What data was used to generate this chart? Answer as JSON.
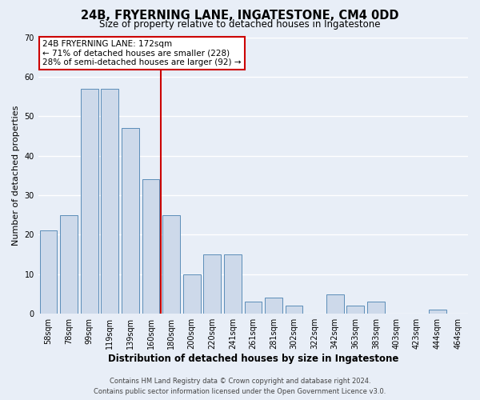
{
  "title": "24B, FRYERNING LANE, INGATESTONE, CM4 0DD",
  "subtitle": "Size of property relative to detached houses in Ingatestone",
  "xlabel": "Distribution of detached houses by size in Ingatestone",
  "ylabel": "Number of detached properties",
  "bar_labels": [
    "58sqm",
    "78sqm",
    "99sqm",
    "119sqm",
    "139sqm",
    "160sqm",
    "180sqm",
    "200sqm",
    "220sqm",
    "241sqm",
    "261sqm",
    "281sqm",
    "302sqm",
    "322sqm",
    "342sqm",
    "363sqm",
    "383sqm",
    "403sqm",
    "423sqm",
    "444sqm",
    "464sqm"
  ],
  "bar_values": [
    21,
    25,
    57,
    57,
    47,
    34,
    25,
    10,
    15,
    15,
    3,
    4,
    2,
    0,
    5,
    2,
    3,
    0,
    0,
    1,
    0
  ],
  "bar_color": "#cdd9ea",
  "bar_edge_color": "#5b8db8",
  "ylim": [
    0,
    70
  ],
  "yticks": [
    0,
    10,
    20,
    30,
    40,
    50,
    60,
    70
  ],
  "vline_color": "#cc0000",
  "annotation_title": "24B FRYERNING LANE: 172sqm",
  "annotation_line1": "← 71% of detached houses are smaller (228)",
  "annotation_line2": "28% of semi-detached houses are larger (92) →",
  "annotation_box_color": "#ffffff",
  "annotation_box_edge": "#cc0000",
  "footer_line1": "Contains HM Land Registry data © Crown copyright and database right 2024.",
  "footer_line2": "Contains public sector information licensed under the Open Government Licence v3.0.",
  "background_color": "#e8eef7",
  "plot_background": "#e8eef7",
  "grid_color": "#ffffff",
  "title_fontsize": 10.5,
  "subtitle_fontsize": 8.5,
  "ylabel_fontsize": 8,
  "xlabel_fontsize": 8.5,
  "tick_fontsize": 7,
  "annotation_fontsize": 7.5,
  "footer_fontsize": 6
}
